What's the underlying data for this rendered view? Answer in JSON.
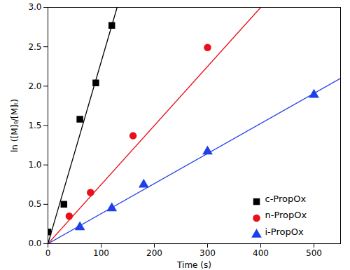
{
  "chart_data": {
    "type": "scatter",
    "x_label": "Time (s)",
    "y_label": "ln ([M]₀/[M]ₜ)",
    "xlim": [
      0,
      550
    ],
    "ylim": [
      0,
      3.0
    ],
    "xticks": [
      0,
      100,
      200,
      300,
      400,
      500
    ],
    "yticks": [
      {
        "value": 0,
        "label": "0.0"
      },
      {
        "value": 0.5,
        "label": "0.5"
      },
      {
        "value": 1.0,
        "label": "1.0"
      },
      {
        "value": 1.5,
        "label": "1.5"
      },
      {
        "value": 2.0,
        "label": "2.0"
      },
      {
        "value": 2.5,
        "label": "2.5"
      },
      {
        "value": 3.0,
        "label": "3.0"
      }
    ],
    "grid": false,
    "legend": "lower-right",
    "series": [
      {
        "name": "c-PropOx",
        "color": "#000000",
        "marker": "square",
        "x": [
          0,
          30,
          60,
          90,
          120
        ],
        "values": [
          0.15,
          0.5,
          1.58,
          2.04,
          2.77
        ],
        "fit": {
          "x": [
            0,
            130
          ],
          "y": [
            0,
            3.0
          ]
        }
      },
      {
        "name": "n-PropOx",
        "color": "#e8101a",
        "marker": "circle",
        "x": [
          40,
          80,
          160,
          300
        ],
        "values": [
          0.35,
          0.65,
          1.37,
          2.49
        ],
        "fit": {
          "x": [
            0,
            400
          ],
          "y": [
            0,
            3.0
          ]
        }
      },
      {
        "name": "i-PropOx",
        "color": "#1f3fe8",
        "marker": "triangle",
        "x": [
          60,
          120,
          180,
          300,
          500
        ],
        "values": [
          0.21,
          0.45,
          0.75,
          1.17,
          1.89
        ],
        "fit": {
          "x": [
            0,
            550
          ],
          "y": [
            0,
            2.1
          ]
        }
      }
    ]
  }
}
